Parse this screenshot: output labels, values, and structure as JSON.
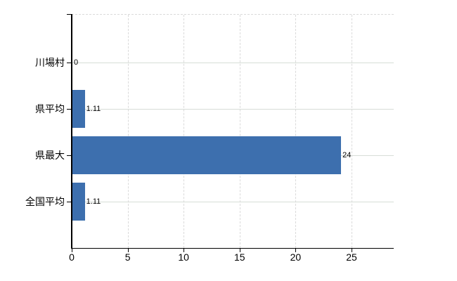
{
  "chart_data": {
    "type": "bar",
    "orientation": "horizontal",
    "title": "",
    "xlabel": "",
    "ylabel": "",
    "legend": "none",
    "categories": [
      "川場村",
      "県平均",
      "県最大",
      "全国平均"
    ],
    "values": [
      0,
      1.11,
      24,
      1.11
    ],
    "value_labels": [
      "0",
      "1.11",
      "24",
      "1.11"
    ],
    "x_ticks": [
      "0",
      "5",
      "10",
      "15",
      "20",
      "25"
    ],
    "x_tick_values": [
      0,
      5,
      10,
      15,
      20,
      25
    ],
    "xlim": [
      0,
      28.8
    ],
    "grid": {
      "horizontal": "solid",
      "vertical": "dashed",
      "top_border": "dashed"
    },
    "colors": {
      "bar": "#3d6fae",
      "axis": "#000000",
      "text": "#000000",
      "grid_horizontal": "#d7ddd7",
      "grid_vertical": "#dadada",
      "background": "#ffffff"
    }
  }
}
